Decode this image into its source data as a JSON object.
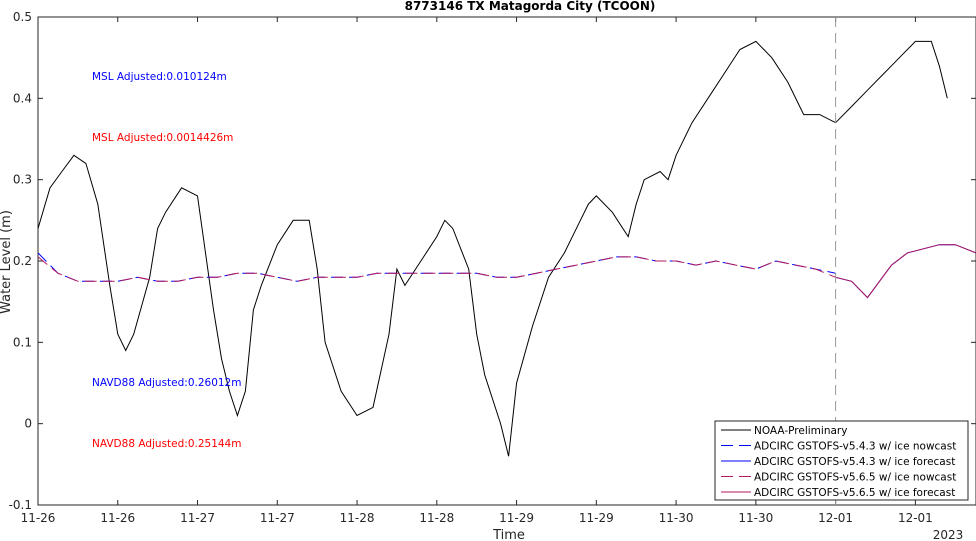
{
  "chart_data": {
    "type": "line",
    "title": "8773146 TX Matagorda City (TCOON)",
    "xlabel": "Time",
    "ylabel": "Water Level (m)",
    "ylim": [
      -0.1,
      0.5
    ],
    "yticks": [
      "-0.1",
      "0",
      "0.1",
      "0.2",
      "0.3",
      "0.4",
      "0.5"
    ],
    "xlim_days": [
      0,
      11.76
    ],
    "xticks": [
      {
        "label": "11-26",
        "day": 0
      },
      {
        "label": "11-26",
        "day": 1
      },
      {
        "label": "11-27",
        "day": 2
      },
      {
        "label": "11-27",
        "day": 3
      },
      {
        "label": "11-28",
        "day": 4
      },
      {
        "label": "11-28",
        "day": 5
      },
      {
        "label": "11-29",
        "day": 6
      },
      {
        "label": "11-29",
        "day": 7
      },
      {
        "label": "11-30",
        "day": 8
      },
      {
        "label": "11-30",
        "day": 9
      },
      {
        "label": "12-01",
        "day": 10
      },
      {
        "label": "12-01",
        "day": 11
      }
    ],
    "year_label": "2023",
    "nowcast_forecast_divider_day": 10.0,
    "grid": false,
    "legend_position": "bottom-right",
    "annotations": [
      {
        "text": "MSL Adjusted:0.010124m",
        "color": "#0000ff"
      },
      {
        "text": "MSL Adjusted:0.0014426m",
        "color": "#ff0000"
      },
      {
        "text": "NAVD88 Adjusted:0.26012m",
        "color": "#0000ff"
      },
      {
        "text": "NAVD88 Adjusted:0.25144m",
        "color": "#ff0000"
      }
    ],
    "series": [
      {
        "name": "NOAA-Preliminary",
        "color": "#000000",
        "style": "solid",
        "x": [
          0,
          0.15,
          0.3,
          0.45,
          0.6,
          0.75,
          0.9,
          1.0,
          1.1,
          1.2,
          1.4,
          1.5,
          1.6,
          1.8,
          2.0,
          2.1,
          2.2,
          2.3,
          2.4,
          2.5,
          2.6,
          2.7,
          2.8,
          3.0,
          3.2,
          3.4,
          3.5,
          3.6,
          3.8,
          4.0,
          4.2,
          4.4,
          4.5,
          4.6,
          4.8,
          5.0,
          5.1,
          5.2,
          5.4,
          5.5,
          5.6,
          5.8,
          5.9,
          6.0,
          6.2,
          6.4,
          6.6,
          6.8,
          6.9,
          7.0,
          7.2,
          7.4,
          7.5,
          7.6,
          7.8,
          7.9,
          8.0,
          8.2,
          8.4,
          8.6,
          8.8,
          9.0,
          9.2,
          9.4,
          9.6,
          9.8,
          10.0,
          10.2,
          10.4,
          10.6,
          10.8,
          11.0,
          11.2,
          11.3,
          11.4
        ],
        "y": [
          0.24,
          0.29,
          0.31,
          0.33,
          0.32,
          0.27,
          0.17,
          0.11,
          0.09,
          0.11,
          0.18,
          0.24,
          0.26,
          0.29,
          0.28,
          0.21,
          0.14,
          0.08,
          0.04,
          0.01,
          0.04,
          0.14,
          0.17,
          0.22,
          0.25,
          0.25,
          0.19,
          0.1,
          0.04,
          0.01,
          0.02,
          0.11,
          0.19,
          0.17,
          0.2,
          0.23,
          0.25,
          0.24,
          0.19,
          0.11,
          0.06,
          0.0,
          -0.04,
          0.05,
          0.12,
          0.18,
          0.21,
          0.25,
          0.27,
          0.28,
          0.26,
          0.23,
          0.27,
          0.3,
          0.31,
          0.3,
          0.33,
          0.37,
          0.4,
          0.43,
          0.46,
          0.47,
          0.45,
          0.42,
          0.38,
          0.38,
          0.37,
          0.39,
          0.41,
          0.43,
          0.45,
          0.47,
          0.47,
          0.44,
          0.4
        ]
      },
      {
        "name": "ADCIRC GSTOFS-v5.4.3 w/ ice nowcast",
        "color": "#0000ff",
        "style": "dashed",
        "x": [
          0,
          0.25,
          0.5,
          0.75,
          1.0,
          1.25,
          1.5,
          1.75,
          2.0,
          2.25,
          2.5,
          2.75,
          3.0,
          3.25,
          3.5,
          3.75,
          4.0,
          4.25,
          4.5,
          4.75,
          5.0,
          5.25,
          5.5,
          5.75,
          6.0,
          6.25,
          6.5,
          6.75,
          7.0,
          7.25,
          7.5,
          7.75,
          8.0,
          8.25,
          8.5,
          8.75,
          9.0,
          9.25,
          9.5,
          9.75,
          10.0
        ],
        "y": [
          0.21,
          0.185,
          0.175,
          0.175,
          0.175,
          0.18,
          0.175,
          0.175,
          0.18,
          0.18,
          0.185,
          0.185,
          0.18,
          0.175,
          0.18,
          0.18,
          0.18,
          0.185,
          0.185,
          0.185,
          0.185,
          0.185,
          0.185,
          0.18,
          0.18,
          0.185,
          0.19,
          0.195,
          0.2,
          0.205,
          0.205,
          0.2,
          0.2,
          0.195,
          0.2,
          0.195,
          0.19,
          0.2,
          0.195,
          0.19,
          0.185
        ]
      },
      {
        "name": "ADCIRC GSTOFS-v5.4.3 w/ ice forecast",
        "color": "#0000ff",
        "style": "solid",
        "x": [
          10.0,
          10.2,
          10.4,
          10.55,
          10.7,
          10.9,
          11.1,
          11.3,
          11.5,
          11.76
        ],
        "y": [
          0.18,
          0.175,
          0.155,
          0.175,
          0.195,
          0.21,
          0.215,
          0.22,
          0.22,
          0.21
        ]
      },
      {
        "name": "ADCIRC GSTOFS-v5.6.5 w/ ice nowcast",
        "color": "#b2185c",
        "style": "dashed",
        "x": [
          0,
          0.25,
          0.5,
          0.75,
          1.0,
          1.25,
          1.5,
          1.75,
          2.0,
          2.25,
          2.5,
          2.75,
          3.0,
          3.25,
          3.5,
          3.75,
          4.0,
          4.25,
          4.5,
          4.75,
          5.0,
          5.25,
          5.5,
          5.75,
          6.0,
          6.25,
          6.5,
          6.75,
          7.0,
          7.25,
          7.5,
          7.75,
          8.0,
          8.25,
          8.5,
          8.75,
          9.0,
          9.25,
          9.5,
          9.75,
          10.0
        ],
        "y": [
          0.205,
          0.185,
          0.175,
          0.175,
          0.175,
          0.18,
          0.175,
          0.175,
          0.18,
          0.18,
          0.185,
          0.185,
          0.18,
          0.175,
          0.18,
          0.18,
          0.18,
          0.185,
          0.185,
          0.185,
          0.185,
          0.185,
          0.185,
          0.18,
          0.18,
          0.185,
          0.19,
          0.195,
          0.2,
          0.205,
          0.205,
          0.2,
          0.2,
          0.195,
          0.2,
          0.195,
          0.19,
          0.2,
          0.195,
          0.19,
          0.18
        ]
      },
      {
        "name": "ADCIRC GSTOFS-v5.6.5 w/ ice forecast",
        "color": "#b2185c",
        "style": "solid",
        "x": [
          10.0,
          10.2,
          10.4,
          10.55,
          10.7,
          10.9,
          11.1,
          11.3,
          11.5,
          11.76
        ],
        "y": [
          0.18,
          0.175,
          0.155,
          0.175,
          0.195,
          0.21,
          0.215,
          0.22,
          0.22,
          0.21
        ]
      }
    ]
  }
}
